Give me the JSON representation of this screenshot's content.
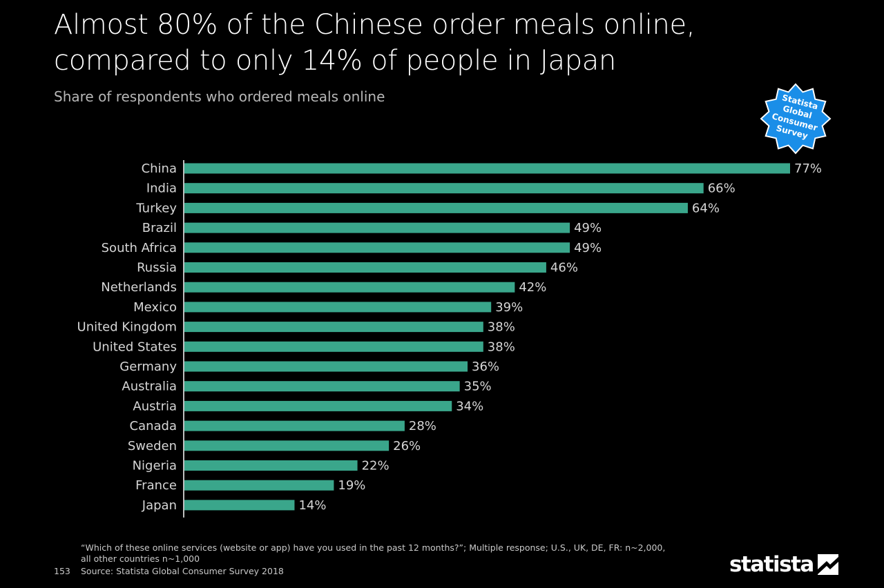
{
  "header": {
    "title": "Almost 80% of the Chinese order meals online, compared to only 14% of people in Japan",
    "subtitle": "Share of respondents who ordered meals online"
  },
  "badge": {
    "lines": [
      "Statista",
      "Global",
      "Consumer",
      "Survey"
    ],
    "color": "#1a8ee8"
  },
  "chart_data": {
    "type": "bar",
    "orientation": "horizontal",
    "title": "Almost 80% of the Chinese order meals online, compared to only 14% of people in Japan",
    "subtitle": "Share of respondents who ordered meals online",
    "categories": [
      "China",
      "India",
      "Turkey",
      "Brazil",
      "South Africa",
      "Russia",
      "Netherlands",
      "Mexico",
      "United Kingdom",
      "United States",
      "Germany",
      "Australia",
      "Austria",
      "Canada",
      "Sweden",
      "Nigeria",
      "France",
      "Japan"
    ],
    "values": [
      77,
      66,
      64,
      49,
      49,
      46,
      42,
      39,
      38,
      38,
      36,
      35,
      34,
      28,
      26,
      22,
      19,
      14
    ],
    "value_labels": [
      "77%",
      "66%",
      "64%",
      "49%",
      "49%",
      "46%",
      "42%",
      "39%",
      "38%",
      "38%",
      "36%",
      "35%",
      "34%",
      "28%",
      "26%",
      "22%",
      "19%",
      "14%"
    ],
    "unit": "%",
    "xlim": [
      0,
      77
    ],
    "grid": false,
    "bar_color": "#3aa68b"
  },
  "footer": {
    "note": "“Which of these online services (website or app) have you used in the past 12 months?”; Multiple response; U.S., UK, DE, FR: n~2,000, all other countries n~1,000",
    "page": "153",
    "source": "Source: Statista Global Consumer Survey 2018",
    "logo": "statista"
  }
}
